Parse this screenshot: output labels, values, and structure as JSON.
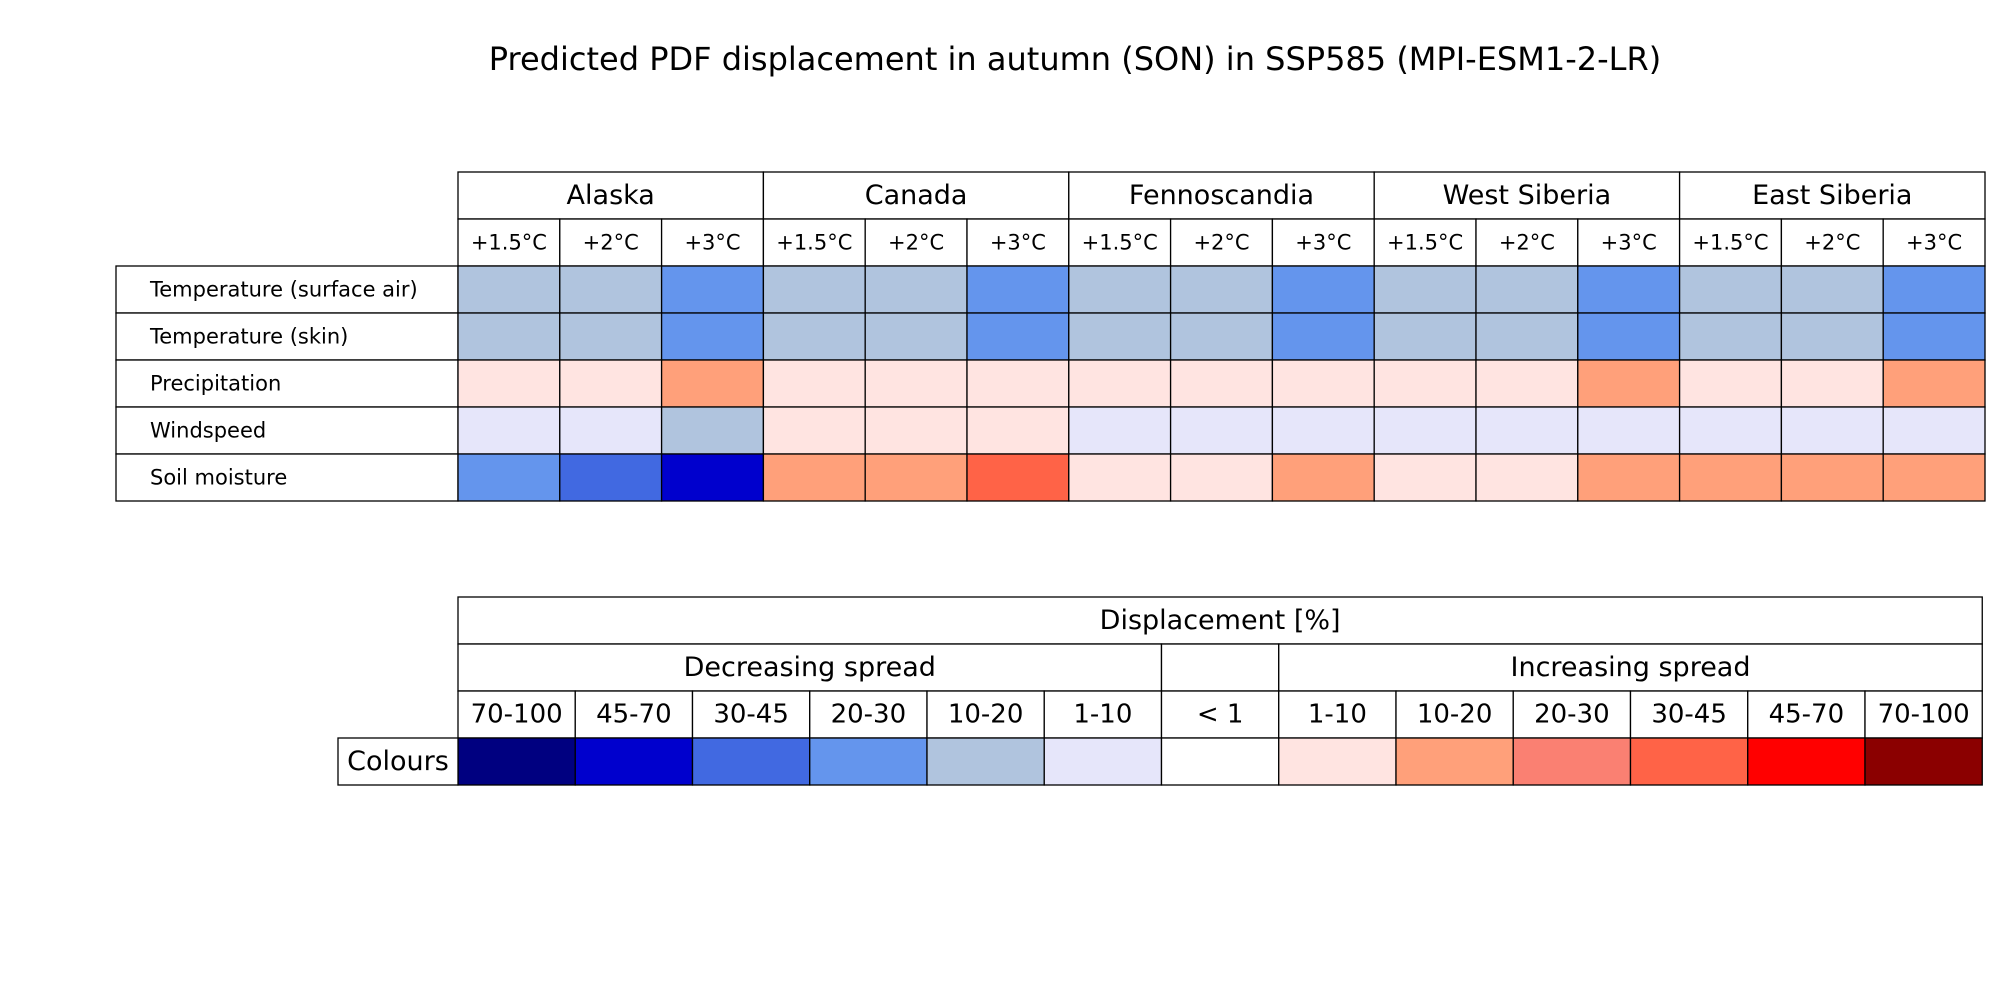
{
  "chart_data": {
    "type": "table",
    "title": "Predicted PDF displacement in autumn (SON) in SSP585 (MPI-ESM1-2-LR)",
    "regions": [
      "Alaska",
      "Canada",
      "Fennoscandia",
      "West Siberia",
      "East Siberia"
    ],
    "warming_levels": [
      "+1.5°C",
      "+2°C",
      "+3°C"
    ],
    "variables": [
      "Temperature (surface air)",
      "Temperature (skin)",
      "Precipitation",
      "Windspeed",
      "Soil moisture"
    ],
    "cell_classes": [
      [
        4,
        4,
        3,
        4,
        4,
        3,
        4,
        4,
        3,
        4,
        4,
        3,
        4,
        4,
        3
      ],
      [
        4,
        4,
        3,
        4,
        4,
        3,
        4,
        4,
        3,
        4,
        4,
        3,
        4,
        4,
        3
      ],
      [
        7,
        7,
        8,
        7,
        7,
        7,
        7,
        7,
        7,
        7,
        7,
        8,
        7,
        7,
        8
      ],
      [
        5,
        5,
        4,
        7,
        7,
        7,
        5,
        5,
        5,
        5,
        5,
        5,
        5,
        5,
        5
      ],
      [
        3,
        2,
        1,
        8,
        8,
        10,
        7,
        7,
        8,
        7,
        7,
        8,
        8,
        8,
        8
      ]
    ],
    "legend": {
      "title": "Displacement [%]",
      "groups": [
        "Decreasing spread",
        "",
        "Increasing spread"
      ],
      "bins": [
        "70-100",
        "45-70",
        "30-45",
        "20-30",
        "10-20",
        "1-10",
        "< 1",
        "1-10",
        "10-20",
        "20-30",
        "30-45",
        "45-70",
        "70-100"
      ],
      "row_label": "Colours",
      "colors": [
        "#000080",
        "#0000cd",
        "#4169e1",
        "#6495ed",
        "#b0c4de",
        "#e6e6fa",
        "#ffffff",
        "#ffe4e1",
        "#ffa07a",
        "#fa8072",
        "#ff6347",
        "#ff0000",
        "#8b0000"
      ]
    }
  }
}
